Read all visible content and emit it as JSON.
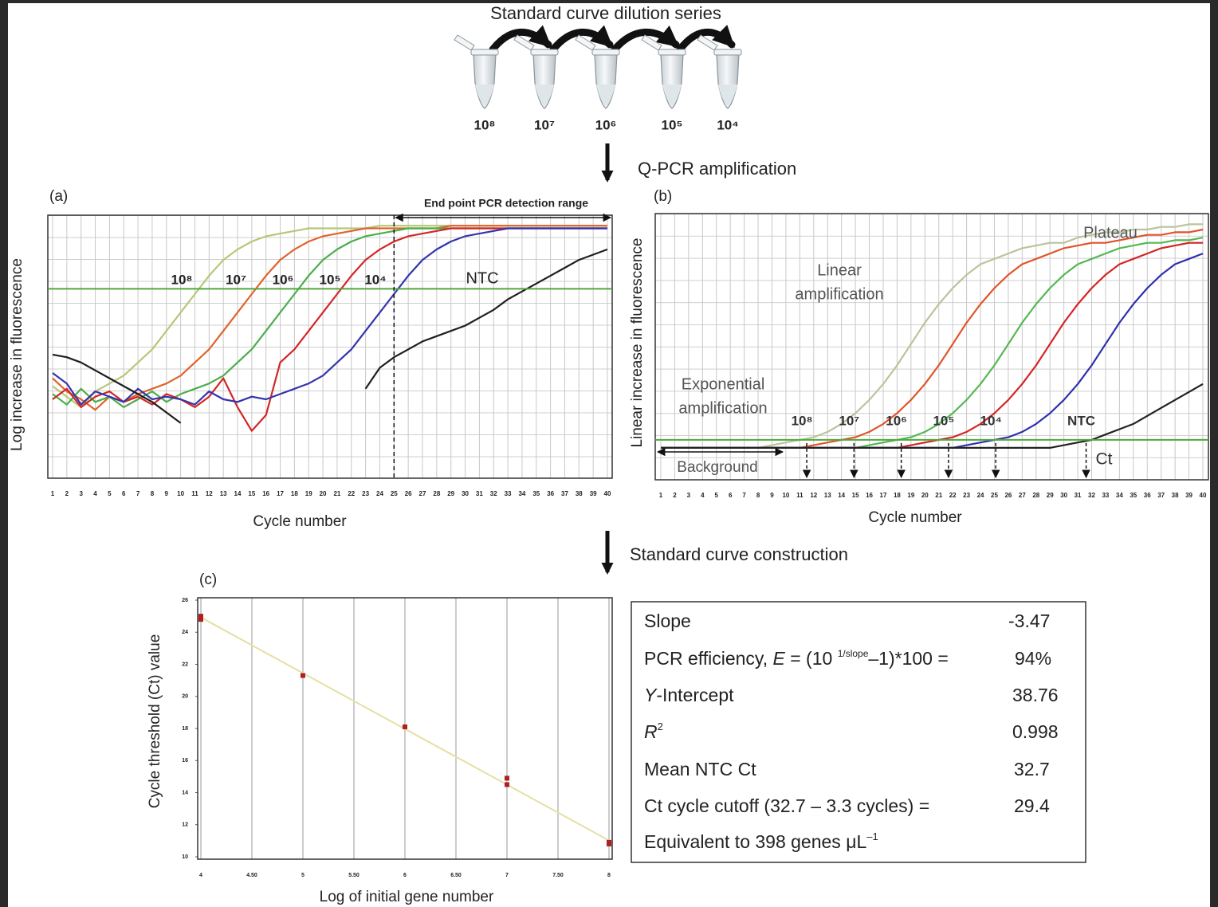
{
  "dilution_series": {
    "title": "Standard curve dilution series",
    "tubes": [
      "10⁸",
      "10⁷",
      "10⁶",
      "10⁵",
      "10⁴"
    ]
  },
  "steps": [
    "Q-PCR amplification",
    "Standard curve construction"
  ],
  "chart_data": [
    {
      "type": "line",
      "panel": "(a)",
      "x_label": "Cycle number",
      "y_label": "Log increase in fluorescence",
      "x": [
        1,
        2,
        3,
        4,
        5,
        6,
        7,
        8,
        9,
        10,
        11,
        12,
        13,
        14,
        15,
        16,
        17,
        18,
        19,
        20,
        21,
        22,
        23,
        24,
        25,
        26,
        27,
        28,
        29,
        30,
        31,
        32,
        33,
        34,
        35,
        36,
        37,
        38,
        39,
        40
      ],
      "xlim": [
        1,
        40
      ],
      "xticks": [
        1,
        2,
        3,
        4,
        5,
        6,
        7,
        8,
        9,
        10,
        11,
        12,
        13,
        14,
        15,
        16,
        17,
        18,
        19,
        20,
        21,
        22,
        23,
        24,
        25,
        26,
        27,
        28,
        29,
        30,
        31,
        32,
        33,
        34,
        35,
        36,
        37,
        38,
        39,
        40
      ],
      "ylim": [
        0,
        100
      ],
      "grid": true,
      "threshold": 72,
      "threshold_color": "#4fa83a",
      "detection_start": 25,
      "detection_label": "End point PCR detection range",
      "series": [
        {
          "name": "10⁸",
          "color": "#b5c878",
          "values": [
            35,
            31,
            27,
            33,
            36,
            39,
            44,
            49,
            56,
            63,
            70,
            77,
            83,
            87,
            90,
            92,
            93,
            94,
            95,
            95,
            95,
            95,
            95,
            96,
            96,
            96,
            96,
            96,
            96,
            96,
            96,
            96,
            96,
            96,
            96,
            96,
            96,
            96,
            96,
            96
          ]
        },
        {
          "name": "10⁷",
          "color": "#e0632b",
          "values": [
            38,
            33,
            30,
            26,
            31,
            29,
            32,
            34,
            36,
            39,
            44,
            49,
            56,
            63,
            70,
            77,
            83,
            87,
            90,
            92,
            93,
            94,
            95,
            95,
            95,
            95,
            95,
            95,
            96,
            96,
            96,
            96,
            96,
            96,
            96,
            96,
            96,
            96,
            96,
            96
          ]
        },
        {
          "name": "10⁶",
          "color": "#4aae4a",
          "values": [
            32,
            28,
            34,
            29,
            31,
            27,
            30,
            33,
            29,
            32,
            34,
            36,
            39,
            44,
            49,
            56,
            63,
            70,
            77,
            83,
            87,
            90,
            92,
            93,
            94,
            95,
            95,
            95,
            95,
            95,
            95,
            95,
            95,
            95,
            95,
            95,
            95,
            95,
            95,
            95
          ]
        },
        {
          "name": "10⁵",
          "color": "#d32626",
          "values": [
            30,
            34,
            27,
            31,
            33,
            29,
            31,
            28,
            32,
            30,
            27,
            31,
            38,
            27,
            18,
            24,
            44,
            49,
            56,
            63,
            70,
            77,
            83,
            87,
            90,
            92,
            93,
            94,
            95,
            95,
            95,
            95,
            95,
            95,
            95,
            95,
            95,
            95,
            95,
            95
          ]
        },
        {
          "name": "10⁴",
          "color": "#3434ad",
          "values": [
            40,
            36,
            28,
            33,
            31,
            29,
            34,
            30,
            31,
            30,
            28,
            33,
            30,
            29,
            31,
            30,
            32,
            34,
            36,
            39,
            44,
            49,
            56,
            63,
            70,
            77,
            83,
            87,
            90,
            92,
            93,
            94,
            95,
            95,
            95,
            95,
            95,
            95,
            95,
            95
          ]
        },
        {
          "name": "NTC",
          "color": "#1e1e1e",
          "values": [
            47,
            46,
            44,
            41,
            38,
            35,
            32,
            29,
            25,
            21,
            null,
            null,
            null,
            null,
            null,
            null,
            null,
            null,
            null,
            null,
            null,
            null,
            34,
            42,
            46,
            49,
            52,
            54,
            56,
            58,
            61,
            64,
            68,
            71,
            74,
            77,
            80,
            83,
            85,
            87
          ]
        }
      ]
    },
    {
      "type": "line",
      "panel": "(b)",
      "x_label": "Cycle number",
      "y_label": "Linear increase in fluorescence",
      "x": [
        1,
        2,
        3,
        4,
        5,
        6,
        7,
        8,
        9,
        10,
        11,
        12,
        13,
        14,
        15,
        16,
        17,
        18,
        19,
        20,
        21,
        22,
        23,
        24,
        25,
        26,
        27,
        28,
        29,
        30,
        31,
        32,
        33,
        34,
        35,
        36,
        37,
        38,
        39,
        40
      ],
      "xlim": [
        1,
        40
      ],
      "xticks": [
        1,
        2,
        3,
        4,
        5,
        6,
        7,
        8,
        9,
        10,
        11,
        12,
        13,
        14,
        15,
        16,
        17,
        18,
        19,
        20,
        21,
        22,
        23,
        24,
        25,
        26,
        27,
        28,
        29,
        30,
        31,
        32,
        33,
        34,
        35,
        36,
        37,
        38,
        39,
        40
      ],
      "ylim": [
        0,
        100
      ],
      "grid": true,
      "threshold": 15,
      "threshold_color": "#4fa83a",
      "annotations": {
        "plateau": "Plateau",
        "linear": [
          "Linear",
          "amplification"
        ],
        "exponential": [
          "Exponential",
          "amplification"
        ],
        "background": "Background",
        "ct": "Ct"
      },
      "series": [
        {
          "name": "10⁸",
          "color": "#b9c49a",
          "ct": 11.5,
          "values": [
            12,
            12,
            12,
            12,
            12,
            12,
            12,
            12,
            13,
            14,
            15,
            16,
            18,
            21,
            25,
            30,
            36,
            43,
            51,
            59,
            66,
            72,
            77,
            81,
            83,
            85,
            87,
            88,
            89,
            89,
            91,
            92,
            93,
            93,
            94,
            94,
            95,
            95,
            96,
            96
          ]
        },
        {
          "name": "10⁷",
          "color": "#e0542a",
          "ct": 14.9,
          "values": [
            12,
            12,
            12,
            12,
            12,
            12,
            12,
            12,
            12,
            12,
            12,
            13,
            14,
            15,
            16,
            18,
            21,
            25,
            30,
            36,
            43,
            51,
            59,
            66,
            72,
            77,
            81,
            83,
            85,
            87,
            88,
            89,
            89,
            90,
            91,
            92,
            92,
            93,
            93,
            94
          ]
        },
        {
          "name": "10⁶",
          "color": "#52b852",
          "ct": 18.3,
          "values": [
            12,
            12,
            12,
            12,
            12,
            12,
            12,
            12,
            12,
            12,
            12,
            12,
            12,
            12,
            12,
            13,
            14,
            15,
            16,
            18,
            21,
            25,
            30,
            36,
            43,
            51,
            59,
            66,
            72,
            77,
            81,
            83,
            85,
            87,
            88,
            89,
            89,
            90,
            90,
            91
          ]
        },
        {
          "name": "10⁵",
          "color": "#d42424",
          "ct": 21.7,
          "values": [
            12,
            12,
            12,
            12,
            12,
            12,
            12,
            12,
            12,
            12,
            12,
            12,
            12,
            12,
            12,
            12,
            12,
            12,
            13,
            14,
            15,
            16,
            18,
            21,
            25,
            30,
            36,
            43,
            51,
            59,
            66,
            72,
            77,
            81,
            83,
            85,
            87,
            88,
            89,
            89
          ]
        },
        {
          "name": "10⁴",
          "color": "#2f2fae",
          "ct": 25.1,
          "values": [
            12,
            12,
            12,
            12,
            12,
            12,
            12,
            12,
            12,
            12,
            12,
            12,
            12,
            12,
            12,
            12,
            12,
            12,
            12,
            12,
            12,
            12,
            13,
            14,
            15,
            16,
            18,
            21,
            25,
            30,
            36,
            43,
            51,
            59,
            66,
            72,
            77,
            81,
            83,
            85
          ]
        },
        {
          "name": "NTC",
          "color": "#222222",
          "ct": 31.6,
          "values": [
            12,
            12,
            12,
            12,
            12,
            12,
            12,
            12,
            12,
            12,
            12,
            12,
            12,
            12,
            12,
            12,
            12,
            12,
            12,
            12,
            12,
            12,
            12,
            12,
            12,
            12,
            12,
            12,
            12,
            13,
            14,
            15,
            17,
            19,
            21,
            24,
            27,
            30,
            33,
            36
          ]
        }
      ]
    },
    {
      "type": "scatter",
      "panel": "(c)",
      "x_label": "Log of initial gene number",
      "y_label": "Cycle threshold (Ct) value",
      "x": [
        4,
        4,
        5,
        6,
        7,
        7,
        8,
        8
      ],
      "values": [
        25,
        24.8,
        21.3,
        18.1,
        14.9,
        14.5,
        10.9,
        10.8
      ],
      "color": "#b02020",
      "fit_color": "#e4e0a4",
      "xlim": [
        4,
        8
      ],
      "xticks": [
        4,
        {
          "value": 4.5,
          "label": "4.50"
        },
        5,
        {
          "value": 5.5,
          "label": "5.50"
        },
        6,
        {
          "value": 6.5,
          "label": "6.50"
        },
        7,
        {
          "value": 7.5,
          "label": "7.50"
        },
        8
      ],
      "ylim": [
        10,
        26
      ],
      "yticks": [
        10,
        12,
        14,
        16,
        18,
        20,
        22,
        24,
        26
      ],
      "grid": true
    }
  ],
  "results_table": {
    "rows": [
      {
        "label": [
          "Slope"
        ],
        "value": "-3.47"
      },
      {
        "label": [
          "PCR efficiency, ",
          "E",
          " = (10 ",
          "1/slope",
          "–1)*100 ="
        ],
        "value": "94%"
      },
      {
        "label": [
          "Y",
          "-Intercept"
        ],
        "value": "38.76"
      },
      {
        "label": [
          "R",
          "2"
        ],
        "value": "0.998"
      },
      {
        "label": [
          "Mean NTC Ct"
        ],
        "value": "32.7"
      },
      {
        "label": [
          "Ct cycle cutoff  (32.7 – 3.3 cycles) ="
        ],
        "value": "29.4"
      },
      {
        "label": [
          "Equivalent to 398 genes μL",
          "–1"
        ]
      }
    ]
  }
}
